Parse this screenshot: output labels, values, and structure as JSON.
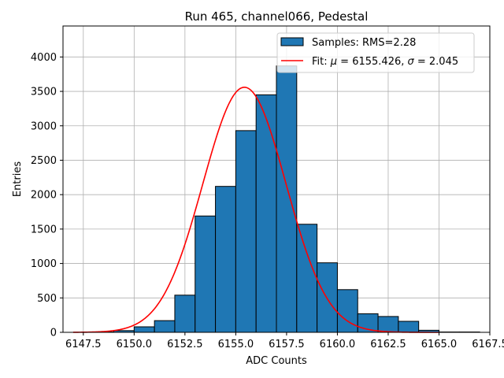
{
  "chart_data": {
    "type": "bar",
    "title": "Run 465, channel066, Pedestal",
    "xlabel": "ADC Counts",
    "ylabel": "Entries",
    "xlim": [
      6146.5,
      6167.5
    ],
    "ylim": [
      0,
      4450
    ],
    "x_ticks": [
      6147.5,
      6150.0,
      6152.5,
      6155.0,
      6157.5,
      6160.0,
      6162.5,
      6165.0,
      6167.5
    ],
    "x_tick_labels": [
      "6147.5",
      "6150.0",
      "6152.5",
      "6155.0",
      "6157.5",
      "6160.0",
      "6162.5",
      "6165.0",
      "6167.5"
    ],
    "y_ticks": [
      0,
      500,
      1000,
      1500,
      2000,
      2500,
      3000,
      3500,
      4000
    ],
    "y_tick_labels": [
      "0",
      "500",
      "1000",
      "1500",
      "2000",
      "2500",
      "3000",
      "3500",
      "4000"
    ],
    "grid": true,
    "legend_position": "top-right",
    "histogram": {
      "name": "Samples: RMS=2.28",
      "color": "#1f77b4",
      "edge_color": "#000000",
      "bin_edges": [
        6148,
        6149,
        6150,
        6151,
        6152,
        6153,
        6154,
        6155,
        6156,
        6157,
        6158,
        6159,
        6160,
        6161,
        6162,
        6163,
        6164,
        6165,
        6166,
        6167
      ],
      "counts": [
        5,
        25,
        80,
        170,
        540,
        1690,
        2120,
        2930,
        3450,
        3870,
        1570,
        1010,
        620,
        270,
        230,
        160,
        30,
        5,
        5
      ]
    },
    "fit": {
      "legend_prefix": "Fit: ",
      "legend_mu_symbol": "μ",
      "legend_mid": " = 6155.426, ",
      "legend_sigma_symbol": "σ",
      "legend_suffix": " = 2.045",
      "mu": 6155.426,
      "sigma": 2.045,
      "amplitude": 3560,
      "x_range": [
        6147,
        6165
      ],
      "color": "#ff0000"
    }
  }
}
